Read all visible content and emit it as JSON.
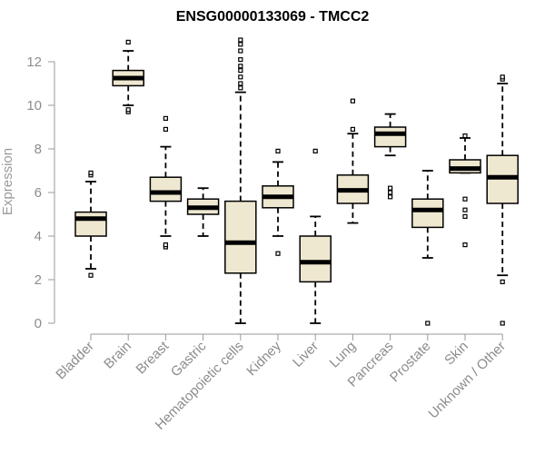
{
  "chart_data": {
    "type": "boxplot",
    "title": "ENSG00000133069 - TMCC2",
    "xlabel": "",
    "ylabel": "Expression",
    "ylim": [
      0,
      12
    ],
    "yticks": [
      0,
      2,
      4,
      6,
      8,
      10,
      12
    ],
    "box_color": "#efe8d1",
    "categories": [
      "Bladder",
      "Brain",
      "Breast",
      "Gastric",
      "Hematopoietic cells",
      "Kidney",
      "Liver",
      "Lung",
      "Pancreas",
      "Prostate",
      "Skin",
      "Unknown / Other"
    ],
    "boxes": [
      {
        "category": "Bladder",
        "whisker_low": 2.5,
        "q1": 4.0,
        "median": 4.8,
        "q3": 5.1,
        "whisker_high": 6.5,
        "outliers": [
          2.2,
          6.8,
          6.9
        ]
      },
      {
        "category": "Brain",
        "whisker_low": 10.0,
        "q1": 10.9,
        "median": 11.25,
        "q3": 11.6,
        "whisker_high": 12.5,
        "outliers": [
          9.7,
          9.8,
          12.9
        ]
      },
      {
        "category": "Breast",
        "whisker_low": 4.0,
        "q1": 5.6,
        "median": 6.0,
        "q3": 6.7,
        "whisker_high": 8.1,
        "outliers": [
          3.5,
          3.6,
          8.9,
          9.4
        ]
      },
      {
        "category": "Gastric",
        "whisker_low": 4.0,
        "q1": 5.0,
        "median": 5.3,
        "q3": 5.7,
        "whisker_high": 6.2,
        "outliers": []
      },
      {
        "category": "Hematopoietic cells",
        "whisker_low": 0.0,
        "q1": 2.3,
        "median": 3.7,
        "q3": 5.6,
        "whisker_high": 10.6,
        "outliers": [
          10.8,
          11.0,
          11.3,
          11.6,
          11.8,
          12.1,
          12.5,
          12.8,
          13.0
        ]
      },
      {
        "category": "Kidney",
        "whisker_low": 4.0,
        "q1": 5.3,
        "median": 5.8,
        "q3": 6.3,
        "whisker_high": 7.4,
        "outliers": [
          3.2,
          7.9
        ]
      },
      {
        "category": "Liver",
        "whisker_low": 0.0,
        "q1": 1.9,
        "median": 2.8,
        "q3": 4.0,
        "whisker_high": 4.9,
        "outliers": [
          7.9
        ]
      },
      {
        "category": "Lung",
        "whisker_low": 4.6,
        "q1": 5.5,
        "median": 6.1,
        "q3": 6.8,
        "whisker_high": 8.7,
        "outliers": [
          8.9,
          10.2
        ]
      },
      {
        "category": "Pancreas",
        "whisker_low": 7.7,
        "q1": 8.1,
        "median": 8.7,
        "q3": 9.0,
        "whisker_high": 9.6,
        "outliers": [
          5.8,
          6.0,
          6.2
        ]
      },
      {
        "category": "Prostate",
        "whisker_low": 3.0,
        "q1": 4.4,
        "median": 5.2,
        "q3": 5.7,
        "whisker_high": 7.0,
        "outliers": [
          0.0
        ]
      },
      {
        "category": "Skin",
        "whisker_low": 6.9,
        "q1": 6.9,
        "median": 7.1,
        "q3": 7.5,
        "whisker_high": 8.5,
        "outliers": [
          3.6,
          4.9,
          5.2,
          5.7,
          8.6
        ]
      },
      {
        "category": "Unknown / Other",
        "whisker_low": 2.2,
        "q1": 5.5,
        "median": 6.7,
        "q3": 7.7,
        "whisker_high": 11.0,
        "outliers": [
          0.0,
          1.9,
          11.2,
          11.3
        ]
      }
    ]
  }
}
